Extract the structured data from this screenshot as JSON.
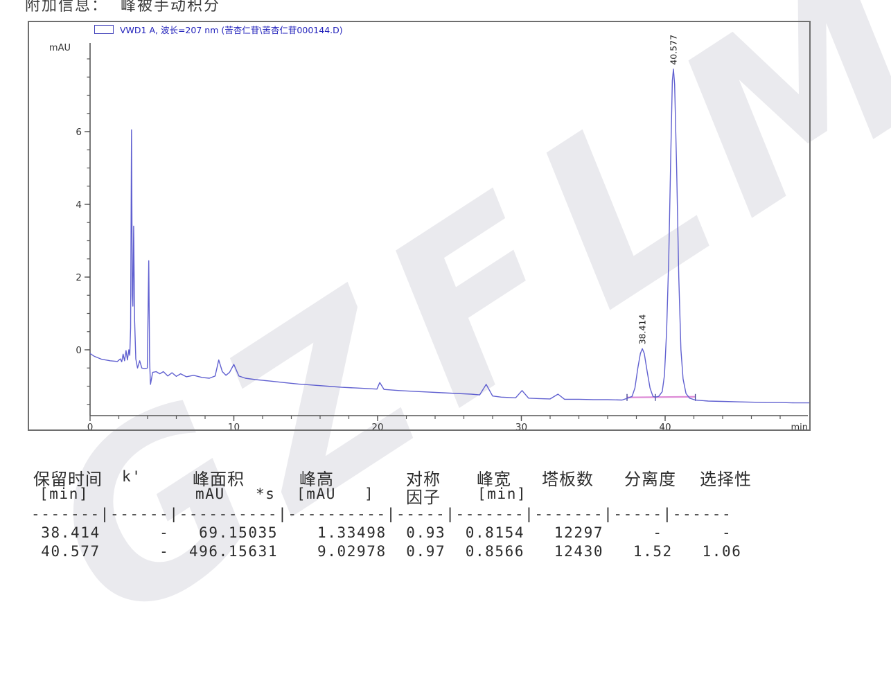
{
  "top_note": "附加信息：  峰被手动积分",
  "watermark": {
    "text": "GZFLM"
  },
  "legend": {
    "label": "VWD1 A, 波长=207 nm (苦杏仁苷\\苦杏仁苷000144.D)"
  },
  "table": {
    "header_row1": [
      "保留时间",
      "k'",
      "峰面积",
      "峰高",
      "对称",
      "峰宽",
      "塔板数",
      "分离度",
      "选择性"
    ],
    "header_row2": [
      "[min]",
      "mAU",
      "*s",
      "[mAU",
      "]",
      "因子",
      "[min]"
    ],
    "separator": "-------|------|----------|----------|-----|-------|-------|-----|------",
    "row_lines": [
      " 38.414      -   69.15035    1.33498  0.93  0.8154   12297     -      -",
      " 40.577      -  496.15631    9.02978  0.97  0.8566   12430   1.52   1.06"
    ]
  },
  "chart_data": {
    "type": "line",
    "title": "VWD1 A, 波长=207 nm (苦杏仁苷\\苦杏仁苷000144.D)",
    "xlabel": "min",
    "ylabel": "mAU",
    "xlim": [
      0,
      50.2
    ],
    "ylim": [
      -1.87,
      8.44
    ],
    "grid": false,
    "legend_position": "top-left",
    "x_axis": {
      "major_ticks": [
        0,
        10,
        20,
        30,
        40
      ],
      "minor_step": 2,
      "minor_range": [
        2,
        48
      ],
      "unit": "min"
    },
    "y_axis": {
      "major_ticks": [
        0,
        2,
        4,
        6
      ],
      "minor_step": 0.5,
      "minor_range": [
        -1.5,
        8
      ],
      "unit": "mAU"
    },
    "curve": [
      [
        0,
        -0.1
      ],
      [
        0.3,
        -0.18
      ],
      [
        0.8,
        -0.26
      ],
      [
        1.4,
        -0.3
      ],
      [
        1.9,
        -0.32
      ],
      [
        2.1,
        -0.25
      ],
      [
        2.2,
        -0.33
      ],
      [
        2.3,
        -0.12
      ],
      [
        2.4,
        -0.3
      ],
      [
        2.5,
        -0.02
      ],
      [
        2.6,
        -0.28
      ],
      [
        2.7,
        0.0
      ],
      [
        2.76,
        -0.15
      ],
      [
        2.82,
        0.6
      ],
      [
        2.88,
        6.05
      ],
      [
        2.94,
        1.5
      ],
      [
        2.98,
        1.2
      ],
      [
        3.03,
        3.4
      ],
      [
        3.1,
        0.8
      ],
      [
        3.18,
        -0.25
      ],
      [
        3.3,
        -0.5
      ],
      [
        3.45,
        -0.3
      ],
      [
        3.6,
        -0.5
      ],
      [
        3.8,
        -0.52
      ],
      [
        3.98,
        -0.5
      ],
      [
        4.08,
        2.45
      ],
      [
        4.14,
        -0.3
      ],
      [
        4.2,
        -0.95
      ],
      [
        4.35,
        -0.62
      ],
      [
        4.6,
        -0.6
      ],
      [
        4.85,
        -0.66
      ],
      [
        5.1,
        -0.6
      ],
      [
        5.4,
        -0.72
      ],
      [
        5.7,
        -0.63
      ],
      [
        6.0,
        -0.73
      ],
      [
        6.3,
        -0.66
      ],
      [
        6.7,
        -0.74
      ],
      [
        7.2,
        -0.7
      ],
      [
        7.8,
        -0.76
      ],
      [
        8.3,
        -0.78
      ],
      [
        8.7,
        -0.72
      ],
      [
        8.95,
        -0.28
      ],
      [
        9.2,
        -0.6
      ],
      [
        9.45,
        -0.7
      ],
      [
        9.7,
        -0.62
      ],
      [
        10.0,
        -0.4
      ],
      [
        10.35,
        -0.72
      ],
      [
        10.8,
        -0.78
      ],
      [
        11.5,
        -0.82
      ],
      [
        12.5,
        -0.86
      ],
      [
        13.5,
        -0.9
      ],
      [
        14.5,
        -0.94
      ],
      [
        15.5,
        -0.97
      ],
      [
        16.5,
        -1.0
      ],
      [
        17.5,
        -1.03
      ],
      [
        18.5,
        -1.05
      ],
      [
        19.5,
        -1.07
      ],
      [
        19.95,
        -1.08
      ],
      [
        20.15,
        -0.9
      ],
      [
        20.45,
        -1.09
      ],
      [
        21.5,
        -1.12
      ],
      [
        22.5,
        -1.14
      ],
      [
        23.5,
        -1.16
      ],
      [
        24.5,
        -1.18
      ],
      [
        25.5,
        -1.2
      ],
      [
        26.5,
        -1.22
      ],
      [
        27.1,
        -1.24
      ],
      [
        27.55,
        -0.95
      ],
      [
        28.0,
        -1.27
      ],
      [
        28.6,
        -1.3
      ],
      [
        29.6,
        -1.32
      ],
      [
        30.05,
        -1.12
      ],
      [
        30.5,
        -1.33
      ],
      [
        31.2,
        -1.34
      ],
      [
        32.0,
        -1.35
      ],
      [
        32.55,
        -1.22
      ],
      [
        33.0,
        -1.36
      ],
      [
        34.0,
        -1.36
      ],
      [
        35.0,
        -1.37
      ],
      [
        36.0,
        -1.37
      ],
      [
        37.0,
        -1.38
      ],
      [
        37.4,
        -1.33
      ],
      [
        37.7,
        -1.28
      ],
      [
        37.9,
        -1.05
      ],
      [
        38.1,
        -0.5
      ],
      [
        38.28,
        -0.1
      ],
      [
        38.414,
        0.03
      ],
      [
        38.55,
        -0.1
      ],
      [
        38.75,
        -0.6
      ],
      [
        38.95,
        -1.05
      ],
      [
        39.15,
        -1.28
      ],
      [
        39.32,
        -1.3
      ],
      [
        39.55,
        -1.28
      ],
      [
        39.8,
        -1.15
      ],
      [
        39.95,
        -0.7
      ],
      [
        40.1,
        0.5
      ],
      [
        40.25,
        2.5
      ],
      [
        40.4,
        5.5
      ],
      [
        40.5,
        7.4
      ],
      [
        40.577,
        7.72
      ],
      [
        40.66,
        7.3
      ],
      [
        40.8,
        5.0
      ],
      [
        40.95,
        2.0
      ],
      [
        41.1,
        0.0
      ],
      [
        41.25,
        -0.8
      ],
      [
        41.45,
        -1.2
      ],
      [
        41.7,
        -1.33
      ],
      [
        42.1,
        -1.38
      ],
      [
        43.0,
        -1.41
      ],
      [
        44.0,
        -1.42
      ],
      [
        45.0,
        -1.43
      ],
      [
        46.0,
        -1.44
      ],
      [
        47.0,
        -1.45
      ],
      [
        48.0,
        -1.45
      ],
      [
        49.0,
        -1.46
      ],
      [
        50.1,
        -1.46
      ]
    ],
    "baseline": {
      "t1": 37.35,
      "t2": 42.1,
      "v": -1.31,
      "tick_ts": [
        37.35,
        39.32,
        42.1
      ]
    },
    "peaks": [
      {
        "label": "38.414",
        "rt": 38.414,
        "apex_mau": 0.03,
        "k": "-",
        "area_mau_s": 69.15035,
        "height_mau": 1.33498,
        "symmetry": 0.93,
        "width_min": 0.8154,
        "plates": 12297,
        "resolution": "-",
        "selectivity": "-"
      },
      {
        "label": "40.577",
        "rt": 40.577,
        "apex_mau": 7.72,
        "k": "-",
        "area_mau_s": 496.15631,
        "height_mau": 9.02978,
        "symmetry": 0.97,
        "width_min": 0.8566,
        "plates": 12430,
        "resolution": 1.52,
        "selectivity": 1.06
      }
    ],
    "colors": {
      "curve": "#6060d0",
      "baseline": "#dd8ad6",
      "axis": "#555555",
      "legend_text": "#2222bb",
      "peak_label": "#222222"
    }
  }
}
